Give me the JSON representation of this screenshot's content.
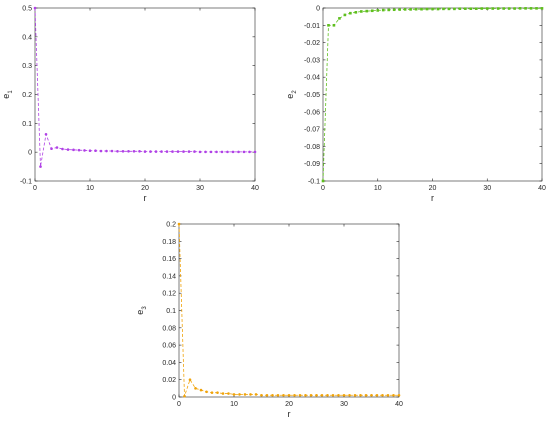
{
  "chart_data": [
    {
      "type": "line",
      "title": "",
      "xlabel": "r",
      "ylabel": {
        "main": "e",
        "sub": "1"
      },
      "xlim": [
        0,
        40
      ],
      "ylim": [
        -0.1,
        0.5
      ],
      "xticks": [
        0,
        10,
        20,
        30,
        40
      ],
      "yticks": [
        -0.1,
        0,
        0.1,
        0.2,
        0.3,
        0.4,
        0.5
      ],
      "ytick_labels": [
        "-0.1",
        "0",
        "0.1",
        "0.2",
        "0.3",
        "0.4",
        "0.5"
      ],
      "grid": false,
      "color": "#b041e6",
      "marker": "circle",
      "series": [
        {
          "x": [
            0,
            1,
            2,
            3,
            4,
            5,
            6,
            7,
            8,
            9,
            10,
            11,
            12,
            13,
            14,
            15,
            16,
            17,
            18,
            19,
            20,
            21,
            22,
            23,
            24,
            25,
            26,
            27,
            28,
            29,
            30,
            31,
            32,
            33,
            34,
            35,
            36,
            37,
            38,
            39,
            40
          ],
          "values": [
            0.5,
            -0.05,
            0.062,
            0.012,
            0.016,
            0.011,
            0.009,
            0.008,
            0.007,
            0.006,
            0.005,
            0.005,
            0.004,
            0.004,
            0.004,
            0.003,
            0.003,
            0.003,
            0.003,
            0.003,
            0.002,
            0.002,
            0.002,
            0.002,
            0.002,
            0.002,
            0.002,
            0.002,
            0.002,
            0.002,
            0.001,
            0.001,
            0.001,
            0.001,
            0.001,
            0.001,
            0.001,
            0.001,
            0.001,
            0.001,
            0.001
          ]
        }
      ]
    },
    {
      "type": "line",
      "title": "",
      "xlabel": "r",
      "ylabel": {
        "main": "e",
        "sub": "2"
      },
      "xlim": [
        0,
        40
      ],
      "ylim": [
        -0.1,
        0
      ],
      "xticks": [
        0,
        10,
        20,
        30,
        40
      ],
      "yticks": [
        -0.1,
        -0.09,
        -0.08,
        -0.07,
        -0.06,
        -0.05,
        -0.04,
        -0.03,
        -0.02,
        -0.01,
        0
      ],
      "ytick_labels": [
        "-0.1",
        "-0.09",
        "-0.08",
        "-0.07",
        "-0.06",
        "-0.05",
        "-0.04",
        "-0.03",
        "-0.02",
        "-0.01",
        "0"
      ],
      "grid": false,
      "color": "#5fbf1e",
      "marker": "square",
      "series": [
        {
          "x": [
            0,
            1,
            2,
            3,
            4,
            5,
            6,
            7,
            8,
            9,
            10,
            11,
            12,
            13,
            14,
            15,
            16,
            17,
            18,
            19,
            20,
            21,
            22,
            23,
            24,
            25,
            26,
            27,
            28,
            29,
            30,
            31,
            32,
            33,
            34,
            35,
            36,
            37,
            38,
            39,
            40
          ],
          "values": [
            -0.1,
            -0.01,
            -0.01,
            -0.006,
            -0.004,
            -0.003,
            -0.0025,
            -0.002,
            -0.0018,
            -0.0016,
            -0.0014,
            -0.0012,
            -0.0011,
            -0.001,
            -0.0009,
            -0.0008,
            -0.0008,
            -0.0007,
            -0.0007,
            -0.0006,
            -0.0006,
            -0.0006,
            -0.0005,
            -0.0005,
            -0.0005,
            -0.0004,
            -0.0004,
            -0.0004,
            -0.0004,
            -0.0003,
            -0.0003,
            -0.0003,
            -0.0003,
            -0.0003,
            -0.0003,
            -0.0003,
            -0.0002,
            -0.0002,
            -0.0002,
            -0.0002,
            -0.0002
          ]
        }
      ]
    },
    {
      "type": "line",
      "title": "",
      "xlabel": "r",
      "ylabel": {
        "main": "e",
        "sub": "3"
      },
      "xlim": [
        0,
        40
      ],
      "ylim": [
        0,
        0.2
      ],
      "xticks": [
        0,
        10,
        20,
        30,
        40
      ],
      "yticks": [
        0,
        0.02,
        0.04,
        0.06,
        0.08,
        0.1,
        0.12,
        0.14,
        0.16,
        0.18,
        0.2
      ],
      "ytick_labels": [
        "0",
        "0.02",
        "0.04",
        "0.06",
        "0.08",
        "0.1",
        "0.12",
        "0.14",
        "0.16",
        "0.18",
        "0.2"
      ],
      "grid": false,
      "color": "#f0a30a",
      "marker": "circle",
      "series": [
        {
          "x": [
            0,
            1,
            2,
            3,
            4,
            5,
            6,
            7,
            8,
            9,
            10,
            11,
            12,
            13,
            14,
            15,
            16,
            17,
            18,
            19,
            20,
            21,
            22,
            23,
            24,
            25,
            26,
            27,
            28,
            29,
            30,
            31,
            32,
            33,
            34,
            35,
            36,
            37,
            38,
            39,
            40
          ],
          "values": [
            0.2,
            0.001,
            0.02,
            0.01,
            0.008,
            0.006,
            0.005,
            0.005,
            0.004,
            0.004,
            0.003,
            0.003,
            0.003,
            0.003,
            0.003,
            0.002,
            0.002,
            0.002,
            0.002,
            0.002,
            0.002,
            0.002,
            0.002,
            0.002,
            0.002,
            0.002,
            0.002,
            0.002,
            0.002,
            0.002,
            0.002,
            0.002,
            0.002,
            0.002,
            0.002,
            0.002,
            0.002,
            0.002,
            0.002,
            0.002,
            0.002
          ]
        }
      ]
    }
  ]
}
